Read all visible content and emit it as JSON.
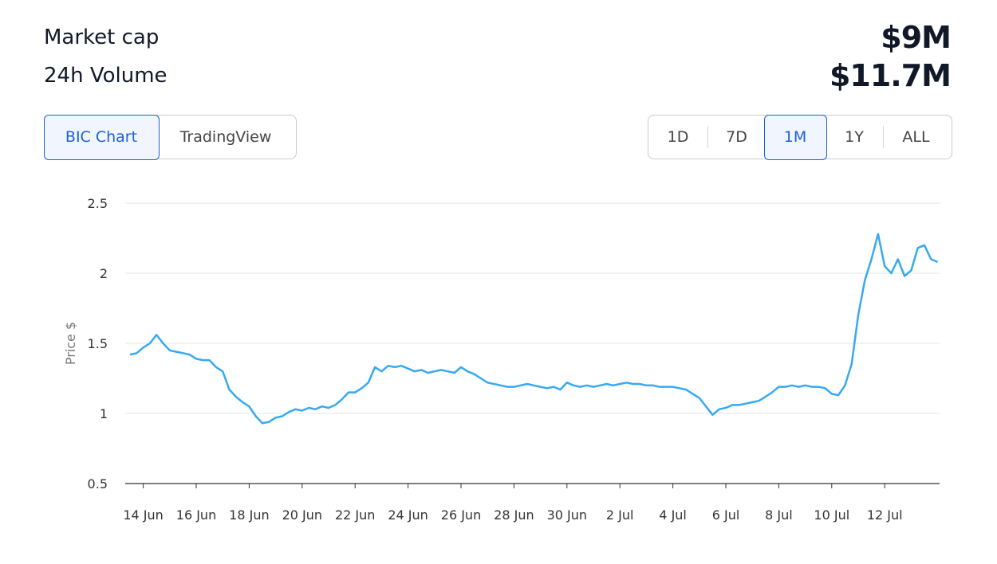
{
  "header": {
    "rows": [
      {
        "label": "Market cap",
        "value": "$9M"
      },
      {
        "label": "24h Volume",
        "value": "$11.7M"
      }
    ]
  },
  "chart_tabs": [
    {
      "label": "BIC Chart",
      "active": true
    },
    {
      "label": "TradingView",
      "active": false
    }
  ],
  "range_buttons": [
    {
      "label": "1D",
      "active": false
    },
    {
      "label": "7D",
      "active": false
    },
    {
      "label": "1M",
      "active": true
    },
    {
      "label": "1Y",
      "active": false
    },
    {
      "label": "ALL",
      "active": false
    }
  ],
  "chart_data": {
    "type": "line",
    "y_label": "Price $",
    "color": "#36a9f2",
    "grid": true,
    "ylim": [
      0.5,
      2.5
    ],
    "yticks": [
      0.5,
      1,
      1.5,
      2,
      2.5
    ],
    "categories": [
      null,
      null,
      "14 Jun",
      null,
      null,
      null,
      null,
      null,
      null,
      null,
      "16 Jun",
      null,
      null,
      null,
      null,
      null,
      null,
      null,
      "18 Jun",
      null,
      null,
      null,
      null,
      null,
      null,
      null,
      "20 Jun",
      null,
      null,
      null,
      null,
      null,
      null,
      null,
      "22 Jun",
      null,
      null,
      null,
      null,
      null,
      null,
      null,
      "24 Jun",
      null,
      null,
      null,
      null,
      null,
      null,
      null,
      "26 Jun",
      null,
      null,
      null,
      null,
      null,
      null,
      null,
      "28 Jun",
      null,
      null,
      null,
      null,
      null,
      null,
      null,
      "30 Jun",
      null,
      null,
      null,
      null,
      null,
      null,
      null,
      "2 Jul",
      null,
      null,
      null,
      null,
      null,
      null,
      null,
      "4 Jul",
      null,
      null,
      null,
      null,
      null,
      null,
      null,
      "6 Jul",
      null,
      null,
      null,
      null,
      null,
      null,
      null,
      "8 Jul",
      null,
      null,
      null,
      null,
      null,
      null,
      null,
      "10 Jul",
      null,
      null,
      null,
      null,
      null,
      null,
      null,
      "12 Jul",
      null,
      null,
      null,
      null,
      null,
      null,
      null,
      null
    ],
    "values": [
      1.42,
      1.43,
      1.47,
      1.5,
      1.56,
      1.5,
      1.45,
      1.44,
      1.43,
      1.42,
      1.39,
      1.38,
      1.38,
      1.33,
      1.3,
      1.17,
      1.12,
      1.08,
      1.05,
      0.98,
      0.93,
      0.94,
      0.97,
      0.98,
      1.01,
      1.03,
      1.02,
      1.04,
      1.03,
      1.05,
      1.04,
      1.06,
      1.1,
      1.15,
      1.15,
      1.18,
      1.22,
      1.33,
      1.3,
      1.34,
      1.33,
      1.34,
      1.32,
      1.3,
      1.31,
      1.29,
      1.3,
      1.31,
      1.3,
      1.29,
      1.33,
      1.3,
      1.28,
      1.25,
      1.22,
      1.21,
      1.2,
      1.19,
      1.19,
      1.2,
      1.21,
      1.2,
      1.19,
      1.18,
      1.19,
      1.17,
      1.22,
      1.2,
      1.19,
      1.2,
      1.19,
      1.2,
      1.21,
      1.2,
      1.21,
      1.22,
      1.21,
      1.21,
      1.2,
      1.2,
      1.19,
      1.19,
      1.19,
      1.18,
      1.17,
      1.14,
      1.11,
      1.05,
      0.99,
      1.03,
      1.04,
      1.06,
      1.06,
      1.07,
      1.08,
      1.09,
      1.12,
      1.15,
      1.19,
      1.19,
      1.2,
      1.19,
      1.2,
      1.19,
      1.19,
      1.18,
      1.14,
      1.13,
      1.2,
      1.35,
      1.7,
      1.95,
      2.1,
      2.28,
      2.05,
      2.0,
      2.1,
      1.98,
      2.02,
      2.18,
      2.2,
      2.1,
      2.08
    ]
  }
}
